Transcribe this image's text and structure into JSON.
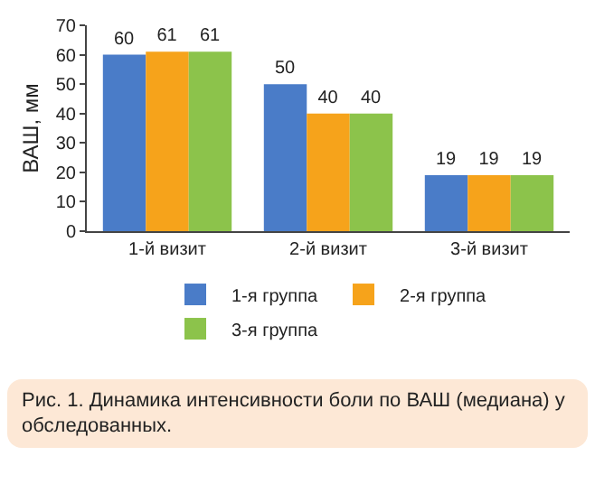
{
  "chart_data": {
    "type": "bar",
    "ylabel": "ВАШ, мм",
    "categories": [
      "1-й визит",
      "2-й визит",
      "3-й визит"
    ],
    "series": [
      {
        "name": "1-я группа",
        "color": "#4a7cc8",
        "values": [
          60,
          50,
          19
        ]
      },
      {
        "name": "2-я группа",
        "color": "#f6a31b",
        "values": [
          61,
          40,
          19
        ]
      },
      {
        "name": "3-я группа",
        "color": "#8cc34b",
        "values": [
          61,
          40,
          19
        ]
      }
    ],
    "ylim": [
      0,
      70
    ],
    "yticks": [
      0,
      10,
      20,
      30,
      40,
      50,
      60,
      70
    ],
    "grid": false,
    "legend": "bottom",
    "data_labels": true,
    "annotations": [
      "Рис. 1. Динамика интенсивности боли по ВАШ (медиана) у обследованных."
    ]
  }
}
